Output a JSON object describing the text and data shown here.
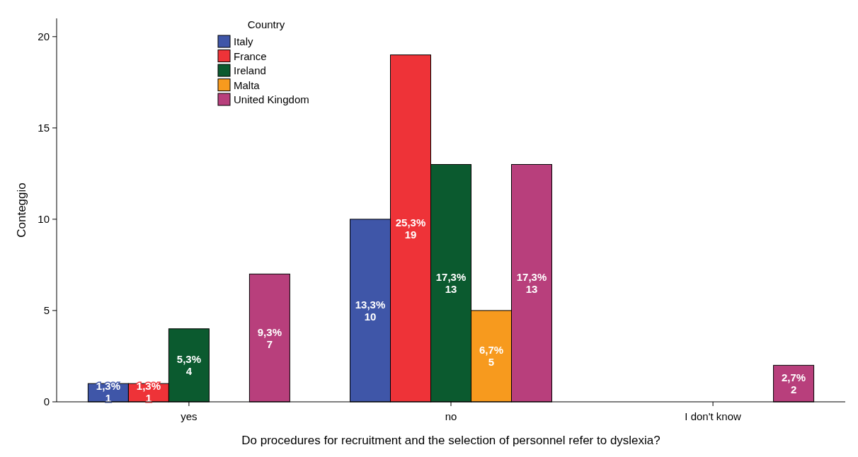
{
  "chart_data": {
    "type": "bar",
    "xlabel": "Do procedures for recruitment and the selection of personnel refer to dyslexia?",
    "ylabel": "Conteggio",
    "legend_title": "Country",
    "categories": [
      "yes",
      "no",
      "I don't know"
    ],
    "series": [
      {
        "name": "Italy",
        "color": "#3f56a8",
        "values": [
          1,
          10,
          null
        ],
        "value_labels": [
          "1,3%\n1",
          "13,3%\n10",
          null
        ]
      },
      {
        "name": "France",
        "color": "#ee3338",
        "values": [
          1,
          19,
          null
        ],
        "value_labels": [
          "1,3%\n1",
          "25,3%\n19",
          null
        ]
      },
      {
        "name": "Ireland",
        "color": "#0b5a2f",
        "values": [
          4,
          13,
          null
        ],
        "value_labels": [
          "5,3%\n4",
          "17,3%\n13",
          null
        ]
      },
      {
        "name": "Malta",
        "color": "#f79a1e",
        "values": [
          null,
          5,
          null
        ],
        "value_labels": [
          null,
          "6,7%\n5",
          null
        ]
      },
      {
        "name": "United Kingdom",
        "color": "#b83f7c",
        "values": [
          7,
          13,
          2
        ],
        "value_labels": [
          "9,3%\n7",
          "17,3%\n13",
          "2,7%\n2"
        ]
      }
    ],
    "ylim": [
      0,
      21
    ],
    "yticks": [
      0,
      5,
      10,
      15,
      20
    ],
    "grid": false,
    "legend": "top left"
  }
}
